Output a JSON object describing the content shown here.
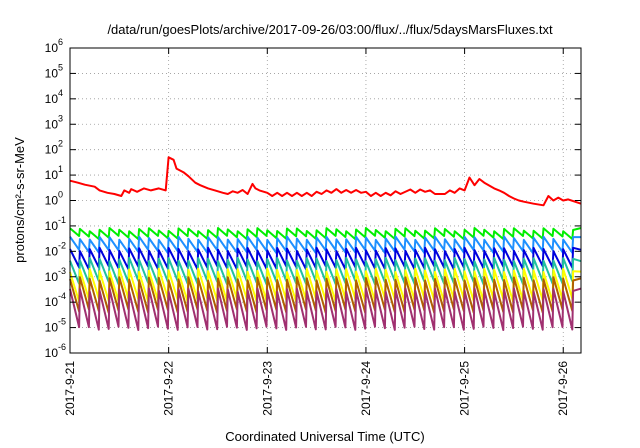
{
  "chart_data": {
    "type": "line",
    "title": "/data/run/goesPlots/archive/2017-09-26/03:00/flux/../flux/5daysMarsFluxes.txt",
    "xlabel": "Coordinated Universal Time (UTC)",
    "ylabel": "protons/cm²-s-sr-MeV",
    "yscale": "log",
    "ylim": [
      1e-06,
      1000000.0
    ],
    "xlim_days": [
      0,
      5.18
    ],
    "y_ticks": [
      {
        "exp": -6,
        "label": "10",
        "sup": "-6"
      },
      {
        "exp": -5,
        "label": "10",
        "sup": "-5"
      },
      {
        "exp": -4,
        "label": "10",
        "sup": "-4"
      },
      {
        "exp": -3,
        "label": "10",
        "sup": "-3"
      },
      {
        "exp": -2,
        "label": "10",
        "sup": "-2"
      },
      {
        "exp": -1,
        "label": "10",
        "sup": "-1"
      },
      {
        "exp": 0,
        "label": "10",
        "sup": "0"
      },
      {
        "exp": 1,
        "label": "10",
        "sup": "1"
      },
      {
        "exp": 2,
        "label": "10",
        "sup": "2"
      },
      {
        "exp": 3,
        "label": "10",
        "sup": "3"
      },
      {
        "exp": 4,
        "label": "10",
        "sup": "4"
      },
      {
        "exp": 5,
        "label": "10",
        "sup": "5"
      },
      {
        "exp": 6,
        "label": "10",
        "sup": "6"
      }
    ],
    "x_ticks": [
      {
        "day": 0,
        "label": "2017-9-21"
      },
      {
        "day": 1,
        "label": "2017-9-22"
      },
      {
        "day": 2,
        "label": "2017-9-23"
      },
      {
        "day": 3,
        "label": "2017-9-24"
      },
      {
        "day": 4,
        "label": "2017-9-25"
      },
      {
        "day": 5,
        "label": "2017-9-26"
      }
    ],
    "grid": true,
    "series": [
      {
        "color": "#ff0000",
        "points": [
          [
            0.0,
            6.0
          ],
          [
            0.08,
            5.0
          ],
          [
            0.15,
            4.2
          ],
          [
            0.25,
            3.5
          ],
          [
            0.3,
            2.5
          ],
          [
            0.38,
            2.0
          ],
          [
            0.45,
            1.8
          ],
          [
            0.52,
            1.5
          ],
          [
            0.55,
            2.5
          ],
          [
            0.6,
            2.0
          ],
          [
            0.62,
            2.8
          ],
          [
            0.68,
            2.2
          ],
          [
            0.75,
            3.0
          ],
          [
            0.82,
            2.5
          ],
          [
            0.9,
            3.0
          ],
          [
            0.97,
            2.5
          ],
          [
            1.0,
            50
          ],
          [
            1.05,
            40
          ],
          [
            1.08,
            18
          ],
          [
            1.15,
            13
          ],
          [
            1.2,
            9
          ],
          [
            1.27,
            5
          ],
          [
            1.32,
            4
          ],
          [
            1.4,
            3
          ],
          [
            1.47,
            2.5
          ],
          [
            1.55,
            2.0
          ],
          [
            1.6,
            1.8
          ],
          [
            1.65,
            2.3
          ],
          [
            1.7,
            2.0
          ],
          [
            1.75,
            2.6
          ],
          [
            1.8,
            1.8
          ],
          [
            1.85,
            4.5
          ],
          [
            1.88,
            3.0
          ],
          [
            1.92,
            2.5
          ],
          [
            2.0,
            2.0
          ],
          [
            2.05,
            1.5
          ],
          [
            2.1,
            2.0
          ],
          [
            2.15,
            1.5
          ],
          [
            2.2,
            2.0
          ],
          [
            2.25,
            1.5
          ],
          [
            2.3,
            2.0
          ],
          [
            2.35,
            1.5
          ],
          [
            2.4,
            2.0
          ],
          [
            2.45,
            1.5
          ],
          [
            2.5,
            2.2
          ],
          [
            2.55,
            1.8
          ],
          [
            2.6,
            2.5
          ],
          [
            2.65,
            2.0
          ],
          [
            2.7,
            2.8
          ],
          [
            2.75,
            2.0
          ],
          [
            2.8,
            2.6
          ],
          [
            2.85,
            2.0
          ],
          [
            2.9,
            2.6
          ],
          [
            2.95,
            2.0
          ],
          [
            3.0,
            2.2
          ],
          [
            3.05,
            1.5
          ],
          [
            3.1,
            2.0
          ],
          [
            3.15,
            1.5
          ],
          [
            3.2,
            2.0
          ],
          [
            3.25,
            1.6
          ],
          [
            3.3,
            2.3
          ],
          [
            3.35,
            1.8
          ],
          [
            3.45,
            2.7
          ],
          [
            3.5,
            2.0
          ],
          [
            3.55,
            2.7
          ],
          [
            3.6,
            2.2
          ],
          [
            3.65,
            2.5
          ],
          [
            3.7,
            1.8
          ],
          [
            3.8,
            1.8
          ],
          [
            3.85,
            2.5
          ],
          [
            3.9,
            2.0
          ],
          [
            3.95,
            3.0
          ],
          [
            4.0,
            2.5
          ],
          [
            4.05,
            8
          ],
          [
            4.1,
            4
          ],
          [
            4.15,
            7
          ],
          [
            4.2,
            5
          ],
          [
            4.3,
            3.0
          ],
          [
            4.35,
            2.5
          ],
          [
            4.4,
            2.0
          ],
          [
            4.45,
            1.5
          ],
          [
            4.5,
            1.2
          ],
          [
            4.55,
            1.0
          ],
          [
            4.6,
            0.9
          ],
          [
            4.7,
            0.75
          ],
          [
            4.8,
            0.65
          ],
          [
            4.85,
            1.5
          ],
          [
            4.9,
            1.0
          ],
          [
            4.95,
            1.3
          ],
          [
            5.0,
            1.0
          ],
          [
            5.05,
            1.1
          ],
          [
            5.1,
            0.95
          ],
          [
            5.18,
            0.75
          ]
        ]
      },
      {
        "color": "#00ee00",
        "base": 0.045,
        "amp": 1.6
      },
      {
        "color": "#1e90ff",
        "base": 0.015,
        "amp": 2.2
      },
      {
        "color": "#0000dd",
        "base": 0.004,
        "amp": 3.0
      },
      {
        "color": "#20c0a0",
        "base": 0.0012,
        "amp": 4.0
      },
      {
        "color": "#ffff00",
        "base": 0.0003,
        "amp": 6.0
      },
      {
        "color": "#b06000",
        "base": 0.00012,
        "amp": 7.0
      },
      {
        "color": "#a03070",
        "base": 3e-05,
        "amp": 10.0
      }
    ],
    "cycle_period_days": 0.1
  }
}
